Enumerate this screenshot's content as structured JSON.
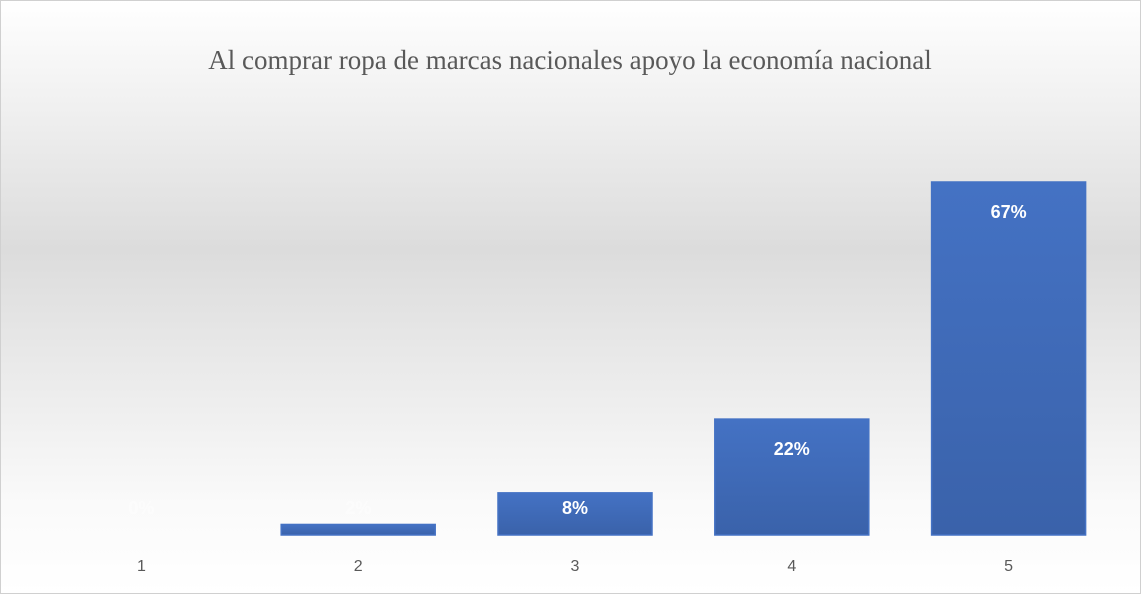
{
  "chart_data": {
    "type": "bar",
    "title": "Al comprar ropa de marcas nacionales apoyo la economía nacional",
    "categories": [
      "1",
      "2",
      "3",
      "4",
      "5"
    ],
    "values": [
      0,
      2,
      8,
      22,
      67
    ],
    "value_labels": [
      "0%",
      "2%",
      "8%",
      "22%",
      "67%"
    ],
    "color": "#4472c4"
  }
}
